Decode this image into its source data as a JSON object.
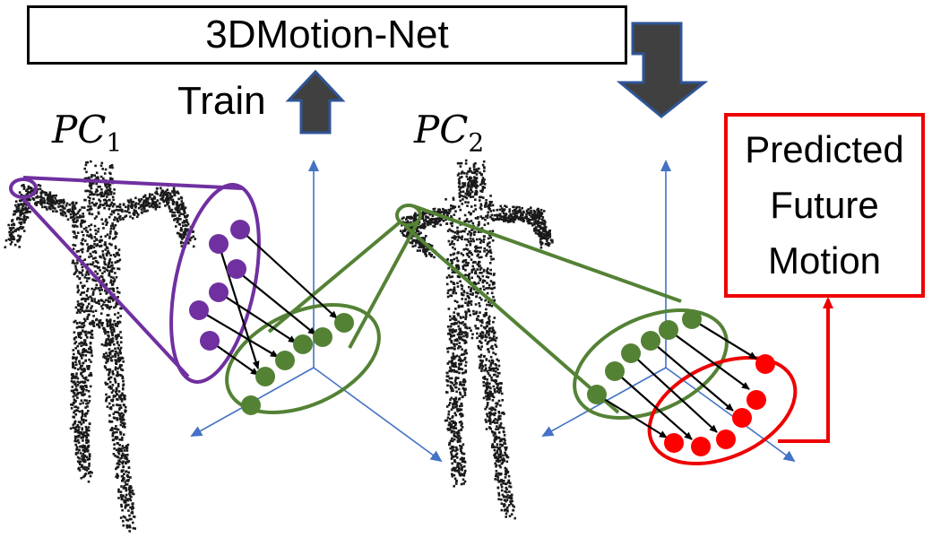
{
  "network": {
    "label": "3DMotion-Net"
  },
  "train": {
    "label": "Train"
  },
  "point_clouds": [
    {
      "label": "PC",
      "subscript": "1"
    },
    {
      "label": "PC",
      "subscript": "2"
    }
  ],
  "output": {
    "lines": [
      "Predicted",
      "Future",
      "Motion"
    ]
  },
  "colors": {
    "pc1_points": "#7030a0",
    "pc2_points": "#548235",
    "predicted_points": "#ff0000",
    "axes": "#4472c4",
    "arrow_fill": "#404040",
    "arrow_outline": "#2f5597",
    "output_border": "#ee0000"
  }
}
